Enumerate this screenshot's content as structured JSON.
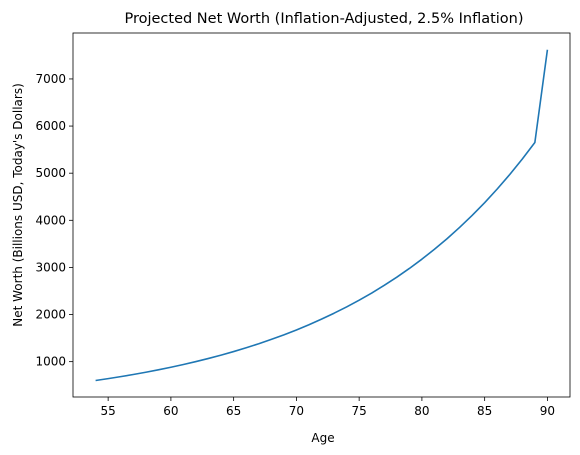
{
  "chart_data": {
    "type": "line",
    "title": "Projected Net Worth (Inflation-Adjusted, 2.5% Inflation)",
    "xlabel": "Age",
    "ylabel": "Net Worth (Billions USD, Today's Dollars)",
    "xlim": [
      52.2,
      91.8
    ],
    "ylim": [
      250,
      7975
    ],
    "xticks": [
      55,
      60,
      65,
      70,
      75,
      80,
      85,
      90
    ],
    "yticks": [
      1000,
      2000,
      3000,
      4000,
      5000,
      6000,
      7000
    ],
    "grid": false,
    "legend": "none",
    "series": [
      {
        "color": "#1f77b4",
        "x": [
          54,
          55,
          56,
          57,
          58,
          59,
          60,
          61,
          62,
          63,
          64,
          65,
          66,
          67,
          68,
          69,
          70,
          71,
          72,
          73,
          74,
          75,
          76,
          77,
          78,
          79,
          80,
          81,
          82,
          83,
          84,
          85,
          86,
          87,
          88,
          89,
          90
        ],
        "y": [
          600,
          640,
          682,
          727,
          775,
          827,
          881,
          940,
          1002,
          1068,
          1139,
          1214,
          1295,
          1380,
          1472,
          1569,
          1673,
          1784,
          1902,
          2028,
          2162,
          2305,
          2457,
          2620,
          2793,
          2978,
          3175,
          3385,
          3609,
          3848,
          4103,
          4374,
          4664,
          4972,
          5301,
          5652,
          7620
        ]
      }
    ]
  }
}
